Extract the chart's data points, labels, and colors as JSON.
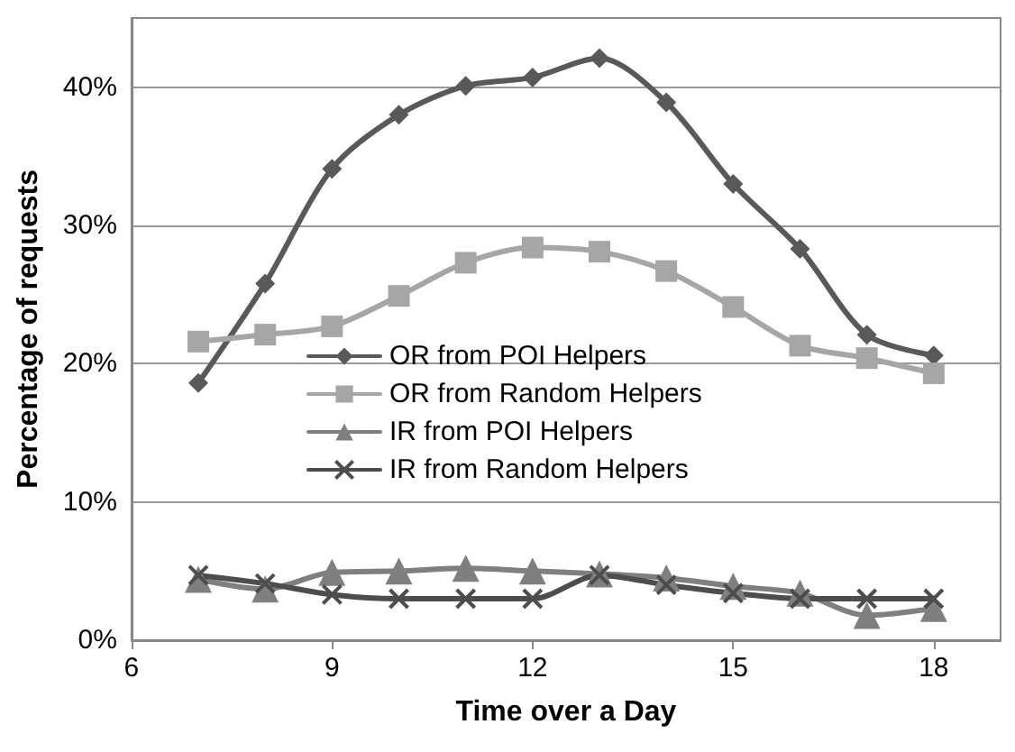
{
  "chart_data": {
    "type": "line",
    "xlabel": "Time over a Day",
    "ylabel": "Percentage of requests",
    "x": [
      7,
      8,
      9,
      10,
      11,
      12,
      13,
      14,
      15,
      16,
      17,
      18
    ],
    "xlim": [
      6,
      19
    ],
    "xticks": [
      6,
      9,
      12,
      15,
      18
    ],
    "ylim": [
      0,
      45
    ],
    "yticks": [
      {
        "value": 0,
        "label": "0%"
      },
      {
        "value": 10,
        "label": "10%"
      },
      {
        "value": 20,
        "label": "20%"
      },
      {
        "value": 30,
        "label": "30%"
      },
      {
        "value": 40,
        "label": "40%"
      }
    ],
    "grid": "y",
    "legend": "left",
    "series": [
      {
        "name": "OR from POI Helpers",
        "color": "#595959",
        "marker": "diamond",
        "values": [
          18.6,
          25.8,
          34.1,
          38,
          40.1,
          40.7,
          42.1,
          38.9,
          33,
          28.3,
          22.1,
          20.6
        ]
      },
      {
        "name": "OR from Random Helpers",
        "color": "#a6a6a6",
        "marker": "square",
        "values": [
          21.6,
          22.1,
          22.7,
          24.9,
          27.3,
          28.4,
          28.1,
          26.7,
          24.1,
          21.3,
          20.4,
          19.3
        ]
      },
      {
        "name": "IR from POI Helpers",
        "color": "#7f7f7f",
        "marker": "triangle",
        "values": [
          4.4,
          3.7,
          4.9,
          5.0,
          5.2,
          5.0,
          4.8,
          4.5,
          3.9,
          3.4,
          1.8,
          2.3
        ]
      },
      {
        "name": "IR from Random Helpers",
        "color": "#4d4d4d",
        "marker": "cross",
        "values": [
          4.7,
          4.1,
          3.3,
          3.0,
          3.0,
          3.0,
          4.7,
          4.0,
          3.4,
          3.0,
          3.0,
          3.0
        ]
      }
    ]
  }
}
